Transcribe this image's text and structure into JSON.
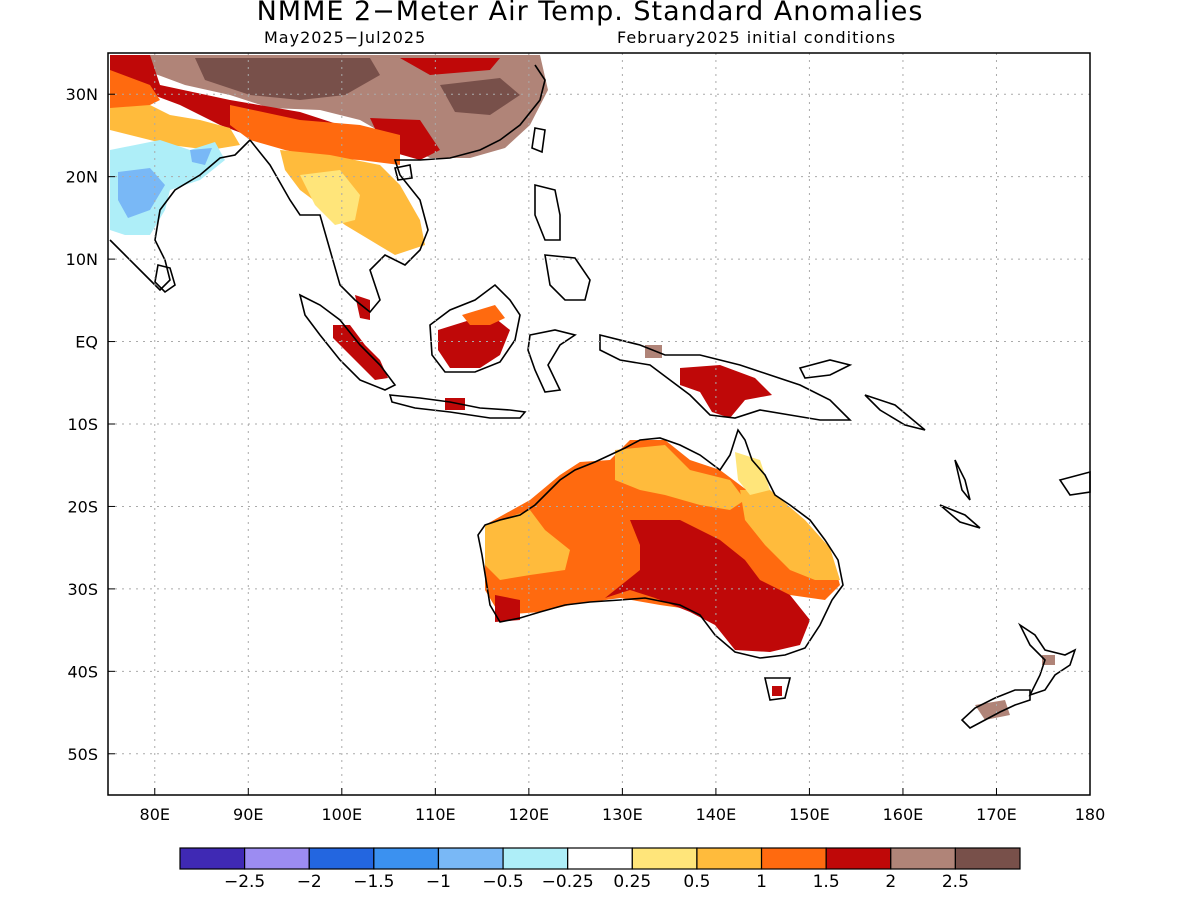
{
  "title": "NMME 2−Meter Air Temp. Standard Anomalies",
  "period": "May2025−Jul2025",
  "init": "February2025 initial conditions",
  "map": {
    "lon_range": [
      75,
      180
    ],
    "lat_range": [
      -55,
      35
    ],
    "lat_ticks": [
      {
        "lat": 30,
        "label": "30N"
      },
      {
        "lat": 20,
        "label": "20N"
      },
      {
        "lat": 10,
        "label": "10N"
      },
      {
        "lat": 0,
        "label": "EQ"
      },
      {
        "lat": -10,
        "label": "10S"
      },
      {
        "lat": -20,
        "label": "20S"
      },
      {
        "lat": -30,
        "label": "30S"
      },
      {
        "lat": -40,
        "label": "40S"
      },
      {
        "lat": -50,
        "label": "50S"
      }
    ],
    "lon_ticks": [
      {
        "lon": 80,
        "label": "80E"
      },
      {
        "lon": 90,
        "label": "90E"
      },
      {
        "lon": 100,
        "label": "100E"
      },
      {
        "lon": 110,
        "label": "110E"
      },
      {
        "lon": 120,
        "label": "120E"
      },
      {
        "lon": 130,
        "label": "130E"
      },
      {
        "lon": 140,
        "label": "140E"
      },
      {
        "lon": 150,
        "label": "150E"
      },
      {
        "lon": 160,
        "label": "160E"
      },
      {
        "lon": 170,
        "label": "170E"
      },
      {
        "lon": 180,
        "label": "180"
      }
    ],
    "grid": "dotted"
  },
  "colorbar": {
    "colors": [
      "#3f29b4",
      "#9c8cf2",
      "#2366e0",
      "#3b91f0",
      "#79b8f6",
      "#aeeef8",
      "#ffffff",
      "#ffe57a",
      "#ffbb3c",
      "#ff6a0f",
      "#bf0808",
      "#b08478",
      "#78504a"
    ],
    "labels": [
      "−2.5",
      "−2",
      "−1.5",
      "−1",
      "−0.5",
      "−0.25",
      "0.25",
      "0.5",
      "1",
      "1.5",
      "2",
      "2.5"
    ]
  }
}
